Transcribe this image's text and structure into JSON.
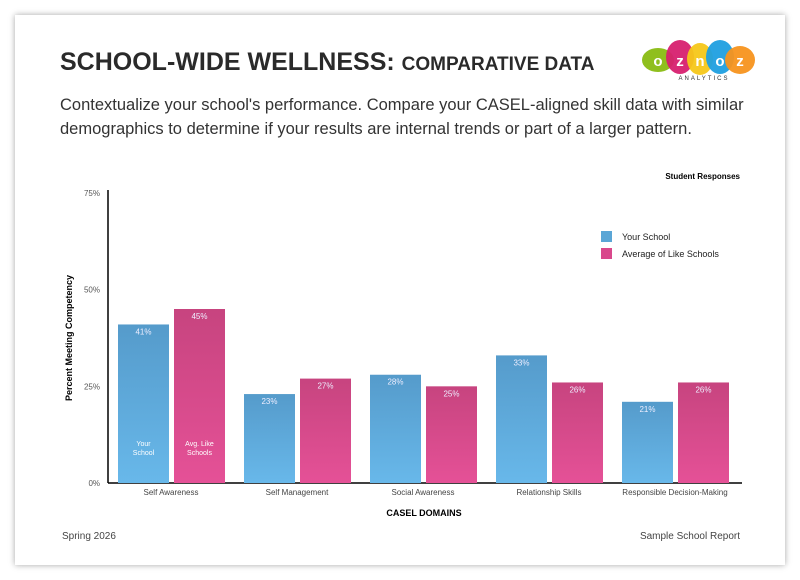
{
  "header": {
    "title_main": "SCHOOL-WIDE WELLNESS:",
    "title_sub": "COMPARATIVE DATA",
    "description": "Contextualize your school's performance. Compare your CASEL-aligned skill data with similar demographics to determine if your results are internal trends or part of a larger pattern.",
    "logo_letters": [
      "o",
      "z",
      "n",
      "o",
      "z"
    ],
    "logo_sub": "ANALYTICS"
  },
  "footer": {
    "left": "Spring 2026",
    "right": "Sample School Report"
  },
  "colors": {
    "your_school": "#5aa6d6",
    "like_schools": "#d9488c"
  },
  "chart_data": {
    "type": "bar",
    "title": "Student Responses",
    "xlabel": "CASEL DOMAINS",
    "ylabel": "Percent Meeting Competency",
    "ylim": [
      0,
      75
    ],
    "yticks": [
      0,
      25,
      50,
      75
    ],
    "ytick_labels": [
      "0%",
      "25%",
      "50%",
      "75%"
    ],
    "categories": [
      "Self Awareness",
      "Self Management",
      "Social Awareness",
      "Relationship Skills",
      "Responsible Decision-Making"
    ],
    "series": [
      {
        "name": "Your School",
        "values": [
          41,
          23,
          28,
          33,
          21
        ],
        "inbar_label": "Your School"
      },
      {
        "name": "Average of Like Schools",
        "values": [
          45,
          27,
          25,
          26,
          26
        ],
        "inbar_label": "Avg. Like Schools"
      }
    ],
    "legend": "top-right"
  }
}
